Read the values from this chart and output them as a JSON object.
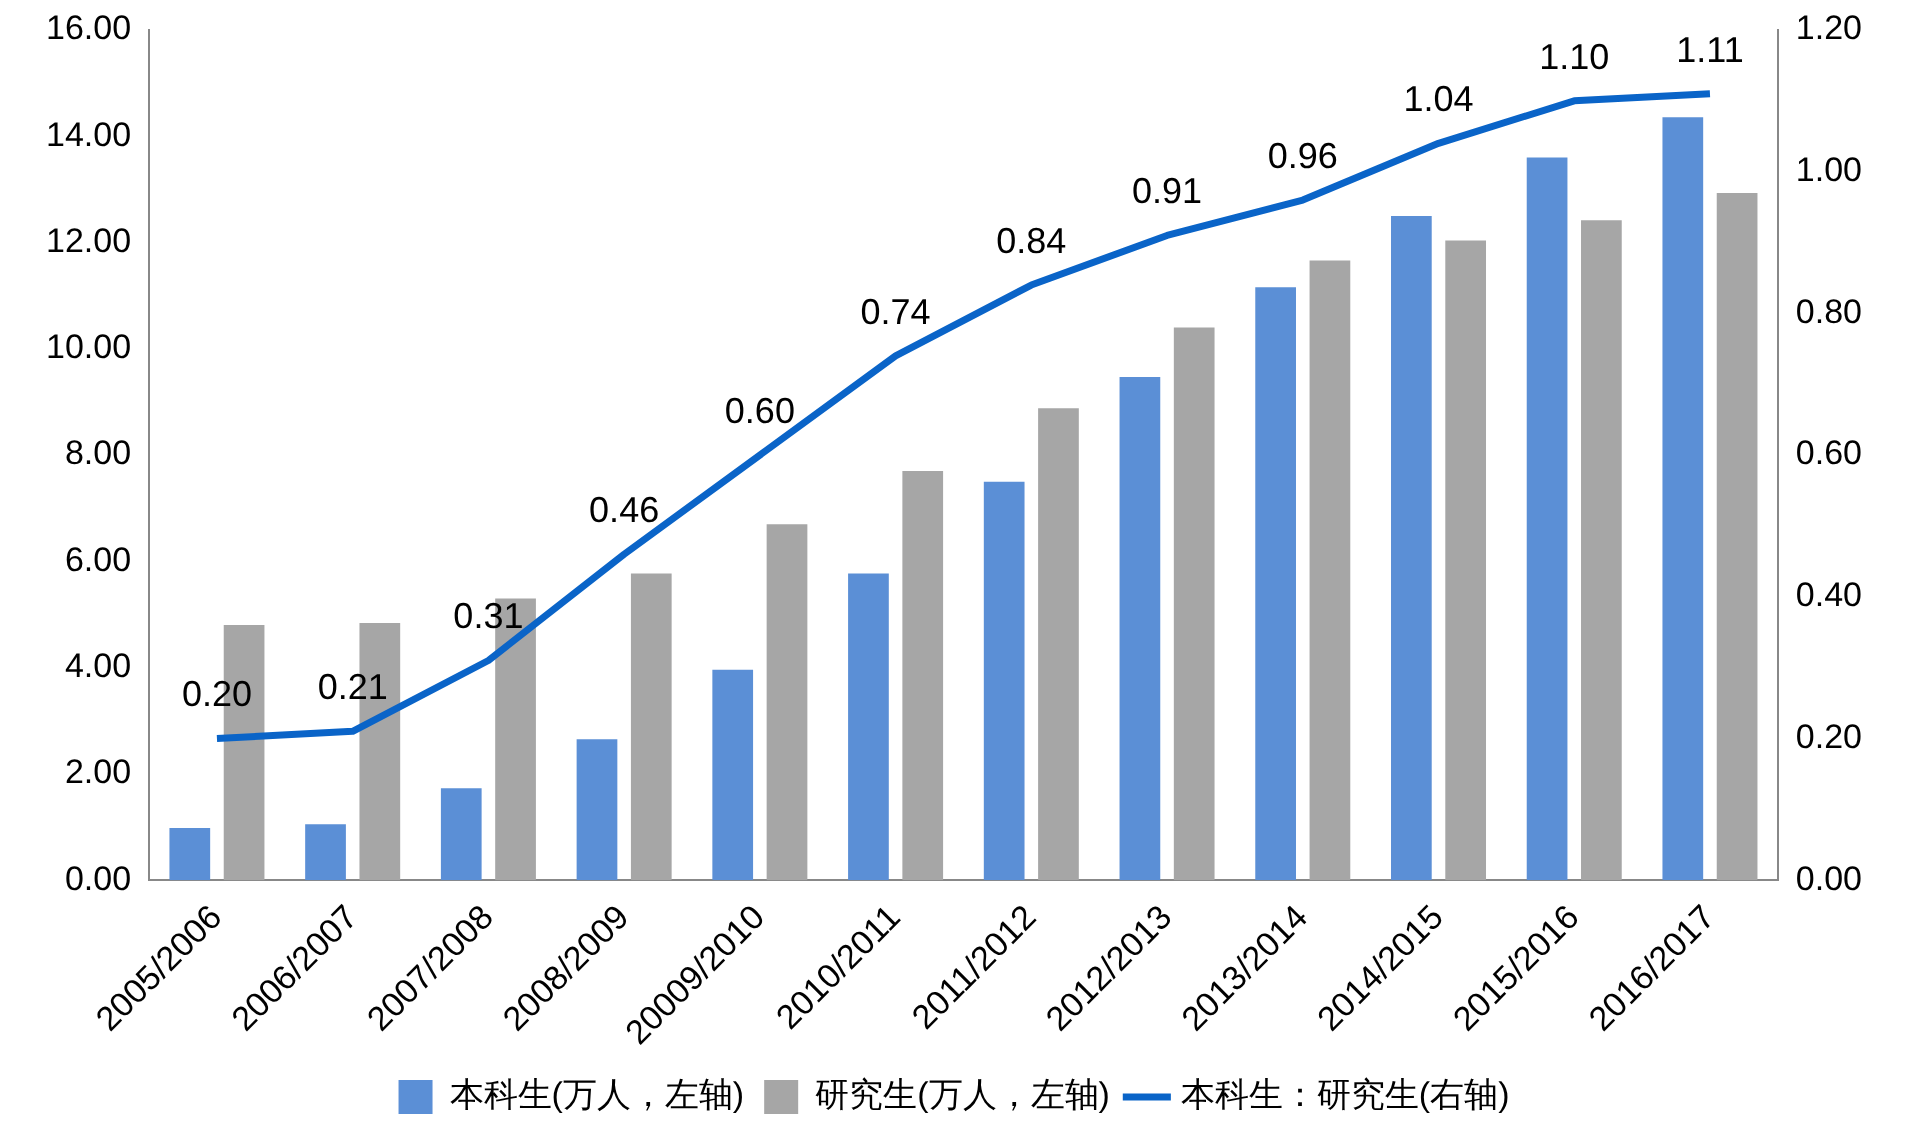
{
  "chart_data": {
    "type": "bar",
    "categories": [
      "2005/2006",
      "2006/2007",
      "2007/2008",
      "2008/2009",
      "20009/2010",
      "2010/2011",
      "2011/2012",
      "2012/2013",
      "2013/2014",
      "2014/2015",
      "2015/2016",
      "2016/2017"
    ],
    "series": [
      {
        "name": "本科生(万人，左轴)",
        "color": "#5b8fd6",
        "values": [
          0.98,
          1.05,
          1.73,
          2.65,
          3.96,
          5.77,
          7.5,
          9.47,
          11.16,
          12.5,
          13.6,
          14.36
        ]
      },
      {
        "name": "研究生(万人，左轴)",
        "color": "#a6a6a6",
        "values": [
          4.8,
          4.84,
          5.3,
          5.77,
          6.7,
          7.7,
          8.88,
          10.4,
          11.66,
          12.04,
          12.42,
          12.93
        ]
      },
      {
        "name": "本科生：研究生(右轴)",
        "type": "line",
        "axis": "y2",
        "color": "#0a64c8",
        "values": [
          0.2,
          0.21,
          0.31,
          0.46,
          0.6,
          0.74,
          0.84,
          0.91,
          0.96,
          1.04,
          1.1,
          1.11
        ],
        "value_labels": [
          "0.20",
          "0.21",
          "0.31",
          "0.46",
          "0.60",
          "0.74",
          "0.84",
          "0.91",
          "0.96",
          "1.04",
          "1.10",
          "1.11"
        ]
      }
    ],
    "ylim": [
      0,
      16
    ],
    "yticks": [
      {
        "value": 0,
        "label": "0.00"
      },
      {
        "value": 2,
        "label": "2.00"
      },
      {
        "value": 4,
        "label": "4.00"
      },
      {
        "value": 6,
        "label": "6.00"
      },
      {
        "value": 8,
        "label": "8.00"
      },
      {
        "value": 10,
        "label": "10.00"
      },
      {
        "value": 12,
        "label": "12.00"
      },
      {
        "value": 14,
        "label": "14.00"
      },
      {
        "value": 16,
        "label": "16.00"
      }
    ],
    "y2lim": [
      0,
      1.2
    ],
    "y2ticks": [
      {
        "value": 0,
        "label": "0.00"
      },
      {
        "value": 0.2,
        "label": "0.20"
      },
      {
        "value": 0.4,
        "label": "0.40"
      },
      {
        "value": 0.6,
        "label": "0.60"
      },
      {
        "value": 0.8,
        "label": "0.80"
      },
      {
        "value": 1,
        "label": "1.00"
      },
      {
        "value": 1.2,
        "label": "1.20"
      }
    ],
    "grid": false,
    "legend": "bottom",
    "marker": "none",
    "line_style": "solid"
  }
}
